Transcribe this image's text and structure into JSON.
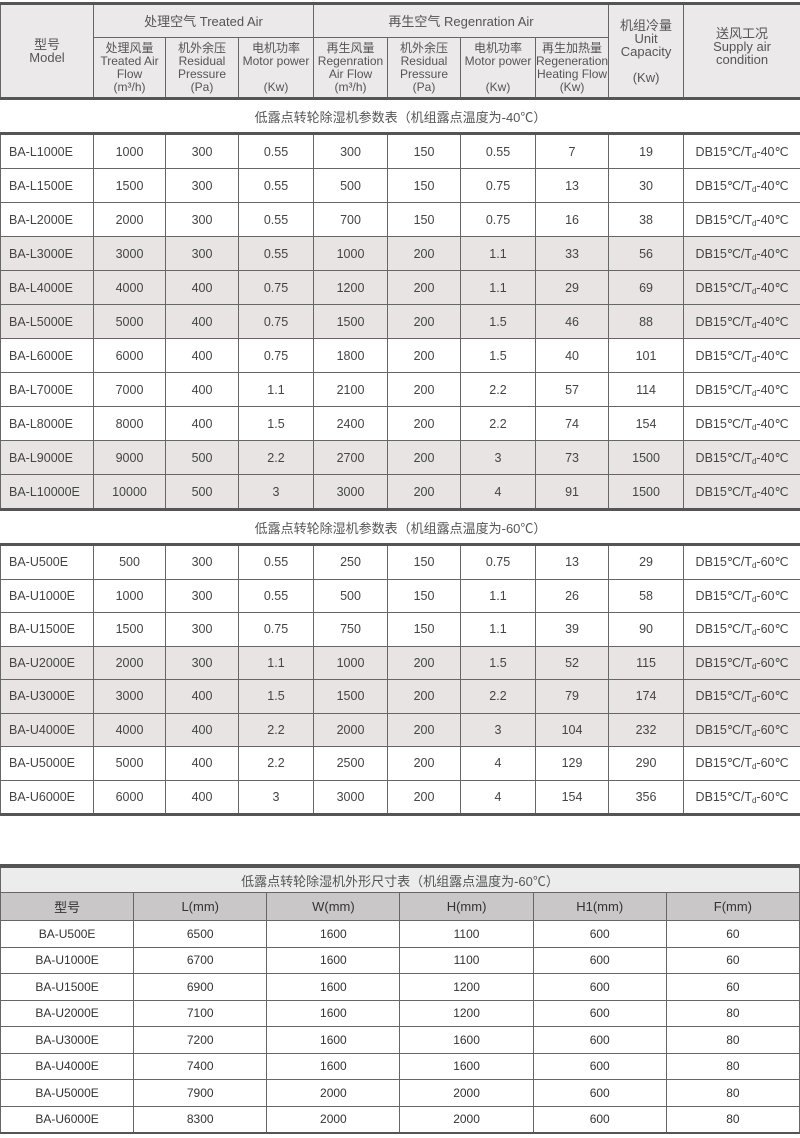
{
  "spec_header": {
    "model": [
      "型号",
      "Model"
    ],
    "treated_group": "处理空气 Treated Air",
    "regen_group": "再生空气  Regenration Air",
    "unit_capacity": [
      "机组冷量",
      "Unit",
      "Capacity",
      "(Kw)"
    ],
    "supply": [
      "送风工况",
      "Supply air",
      "condition"
    ],
    "sub_columns": [
      [
        "处理风量",
        "Treated Air",
        "Flow",
        "(m³/h)"
      ],
      [
        "机外余压",
        "Residual",
        "Pressure",
        "(Pa)"
      ],
      [
        "电机功率",
        "Motor power",
        "",
        "(Kw)"
      ],
      [
        "再生风量",
        "Regenration",
        "Air Flow",
        "(m³/h)"
      ],
      [
        "机外余压",
        "Residual",
        "Pressure",
        "(Pa)"
      ],
      [
        "电机功率",
        "Motor power",
        "",
        "(Kw)"
      ],
      [
        "再生加热量",
        "Regeneration",
        "Heating Flow",
        "(Kw)"
      ]
    ]
  },
  "sections": [
    {
      "title": "低露点转轮除湿机参数表（机组露点温度为-40℃）",
      "condition": {
        "pre": "DB15℃/T",
        "sub": "d",
        "post": "-40℃"
      },
      "rows": [
        {
          "model": "BA-L1000E",
          "values": [
            "1000",
            "300",
            "0.55",
            "300",
            "150",
            "0.55",
            "7",
            "19"
          ],
          "shaded": false
        },
        {
          "model": "BA-L1500E",
          "values": [
            "1500",
            "300",
            "0.55",
            "500",
            "150",
            "0.75",
            "13",
            "30"
          ],
          "shaded": false
        },
        {
          "model": "BA-L2000E",
          "values": [
            "2000",
            "300",
            "0.55",
            "700",
            "150",
            "0.75",
            "16",
            "38"
          ],
          "shaded": false
        },
        {
          "model": "BA-L3000E",
          "values": [
            "3000",
            "300",
            "0.55",
            "1000",
            "200",
            "1.1",
            "33",
            "56"
          ],
          "shaded": true
        },
        {
          "model": "BA-L4000E",
          "values": [
            "4000",
            "400",
            "0.75",
            "1200",
            "200",
            "1.1",
            "29",
            "69"
          ],
          "shaded": true
        },
        {
          "model": "BA-L5000E",
          "values": [
            "5000",
            "400",
            "0.75",
            "1500",
            "200",
            "1.5",
            "46",
            "88"
          ],
          "shaded": true
        },
        {
          "model": "BA-L6000E",
          "values": [
            "6000",
            "400",
            "0.75",
            "1800",
            "200",
            "1.5",
            "40",
            "101"
          ],
          "shaded": false
        },
        {
          "model": "BA-L7000E",
          "values": [
            "7000",
            "400",
            "1.1",
            "2100",
            "200",
            "2.2",
            "57",
            "114"
          ],
          "shaded": false
        },
        {
          "model": "BA-L8000E",
          "values": [
            "8000",
            "400",
            "1.5",
            "2400",
            "200",
            "2.2",
            "74",
            "154"
          ],
          "shaded": false
        },
        {
          "model": "BA-L9000E",
          "values": [
            "9000",
            "500",
            "2.2",
            "2700",
            "200",
            "3",
            "73",
            "1500"
          ],
          "shaded": true
        },
        {
          "model": "BA-L10000E",
          "values": [
            "10000",
            "500",
            "3",
            "3000",
            "200",
            "4",
            "91",
            "1500"
          ],
          "shaded": true
        }
      ]
    },
    {
      "title": "低露点转轮除湿机参数表（机组露点温度为-60℃）",
      "condition": {
        "pre": "DB15℃/T",
        "sub": "d",
        "post": "-60℃"
      },
      "rows": [
        {
          "model": "BA-U500E",
          "values": [
            "500",
            "300",
            "0.55",
            "250",
            "150",
            "0.75",
            "13",
            "29"
          ],
          "shaded": false
        },
        {
          "model": "BA-U1000E",
          "values": [
            "1000",
            "300",
            "0.55",
            "500",
            "150",
            "1.1",
            "26",
            "58"
          ],
          "shaded": false
        },
        {
          "model": "BA-U1500E",
          "values": [
            "1500",
            "300",
            "0.75",
            "750",
            "150",
            "1.1",
            "39",
            "90"
          ],
          "shaded": false
        },
        {
          "model": "BA-U2000E",
          "values": [
            "2000",
            "300",
            "1.1",
            "1000",
            "200",
            "1.5",
            "52",
            "115"
          ],
          "shaded": true
        },
        {
          "model": "BA-U3000E",
          "values": [
            "3000",
            "400",
            "1.5",
            "1500",
            "200",
            "2.2",
            "79",
            "174"
          ],
          "shaded": true
        },
        {
          "model": "BA-U4000E",
          "values": [
            "4000",
            "400",
            "2.2",
            "2000",
            "200",
            "3",
            "104",
            "232"
          ],
          "shaded": true
        },
        {
          "model": "BA-U5000E",
          "values": [
            "5000",
            "400",
            "2.2",
            "2500",
            "200",
            "4",
            "129",
            "290"
          ],
          "shaded": false
        },
        {
          "model": "BA-U6000E",
          "values": [
            "6000",
            "400",
            "3",
            "3000",
            "200",
            "4",
            "154",
            "356"
          ],
          "shaded": false
        }
      ]
    }
  ],
  "dimensions": {
    "title": "低露点转轮除湿机外形尺寸表（机组露点温度为-60℃）",
    "headers": [
      "型号",
      "L(mm)",
      "W(mm)",
      "H(mm)",
      "H1(mm)",
      "F(mm)"
    ],
    "rows": [
      [
        "BA-U500E",
        "6500",
        "1600",
        "1100",
        "600",
        "60"
      ],
      [
        "BA-U1000E",
        "6700",
        "1600",
        "1100",
        "600",
        "60"
      ],
      [
        "BA-U1500E",
        "6900",
        "1600",
        "1200",
        "600",
        "60"
      ],
      [
        "BA-U2000E",
        "7100",
        "1600",
        "1200",
        "600",
        "80"
      ],
      [
        "BA-U3000E",
        "7200",
        "1600",
        "1600",
        "600",
        "80"
      ],
      [
        "BA-U4000E",
        "7400",
        "1600",
        "1600",
        "600",
        "80"
      ],
      [
        "BA-U5000E",
        "7900",
        "2000",
        "2000",
        "600",
        "80"
      ],
      [
        "BA-U6000E",
        "8300",
        "2000",
        "2000",
        "600",
        "80"
      ]
    ]
  }
}
